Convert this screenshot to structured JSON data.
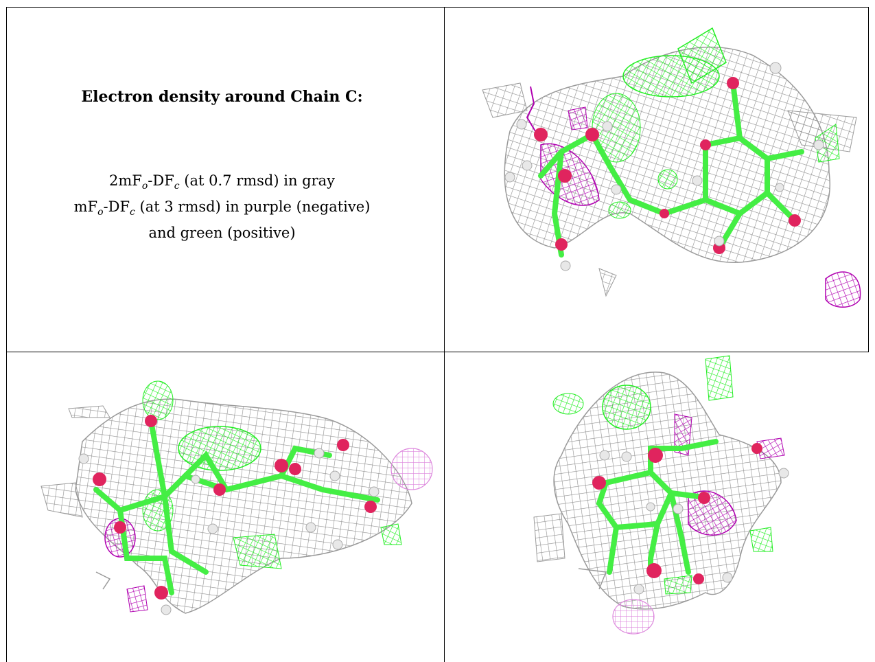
{
  "caption": {
    "title": "Electron density around Chain C:",
    "line1_prefix": "2mF",
    "line1_sub1": "o",
    "line1_mid": "-DF",
    "line1_sub2": "c",
    "line1_suffix": " (at 0.7 rmsd) in gray",
    "line2_prefix": "mF",
    "line2_sub1": "o",
    "line2_mid": "-DF",
    "line2_sub2": "c",
    "line2_suffix": " (at 3 rmsd) in purple (negative)",
    "line3": "and green (positive)"
  },
  "colors": {
    "map_2fofc": "#9a9a9a",
    "map_positive": "#22ee22",
    "map_negative": "#b000b0",
    "atom_oxygen": "#e0245e",
    "atom_hydrogen": "#e8e8e8",
    "bond_carbon": "#44ee44"
  }
}
